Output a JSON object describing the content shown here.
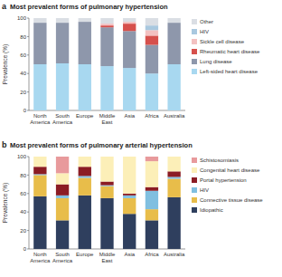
{
  "chart_data": [
    {
      "type": "bar",
      "stacked": true,
      "panel_label": "a",
      "title": "Most prevalent forms of pulmonary hypertension",
      "y_label": "Prevalence (%)",
      "categories": [
        "North America",
        "South America",
        "Europe",
        "Middle East",
        "Asia",
        "Africa",
        "Australia"
      ],
      "ylim": [
        0,
        100
      ],
      "yticks": [
        0,
        20,
        40,
        60,
        80,
        100
      ],
      "legend": "right",
      "series": [
        {
          "name": "Left-sided heart disease",
          "color": "#a8d8f0",
          "values": [
            50,
            51,
            50,
            48,
            46,
            40,
            50
          ]
        },
        {
          "name": "Lung disease",
          "color": "#8e97ab",
          "values": [
            45,
            44,
            46,
            42,
            40,
            31,
            45
          ]
        },
        {
          "name": "Rheumatic heart disease",
          "color": "#d6504c",
          "values": [
            0,
            0,
            0,
            2,
            8,
            10,
            0
          ]
        },
        {
          "name": "Sickle cell disease",
          "color": "#f3c1c1",
          "values": [
            0,
            0,
            0,
            2,
            2,
            6,
            0
          ]
        },
        {
          "name": "HIV",
          "color": "#a9c8df",
          "values": [
            0,
            0,
            0,
            0,
            0,
            5,
            0
          ]
        },
        {
          "name": "Other",
          "color": "#dadee4",
          "values": [
            5,
            5,
            4,
            6,
            4,
            8,
            5
          ]
        }
      ]
    },
    {
      "type": "bar",
      "stacked": true,
      "panel_label": "b",
      "title": "Most prevalent forms of pulmonary arterial hypertension",
      "y_label": "Prevalence (%)",
      "categories": [
        "North America",
        "South America",
        "Europe",
        "Middle East",
        "Asia",
        "Africa",
        "Australia"
      ],
      "ylim": [
        0,
        100
      ],
      "yticks": [
        0,
        20,
        40,
        60,
        80,
        100
      ],
      "legend": "right",
      "series": [
        {
          "name": "Idiopathic",
          "color": "#2f3f5e",
          "values": [
            57,
            31,
            58,
            55,
            38,
            31,
            56
          ]
        },
        {
          "name": "Connective tissue disease",
          "color": "#e8bd4a",
          "values": [
            23,
            24,
            19,
            13,
            17,
            12,
            20
          ]
        },
        {
          "name": "HIV",
          "color": "#80bfe0",
          "values": [
            1,
            3,
            2,
            1,
            3,
            20,
            2
          ]
        },
        {
          "name": "Portal hypertension",
          "color": "#8b1c24",
          "values": [
            8,
            12,
            10,
            4,
            2,
            4,
            6
          ]
        },
        {
          "name": "Congenital heart disease",
          "color": "#fcefb8",
          "values": [
            11,
            12,
            11,
            27,
            40,
            28,
            16
          ]
        },
        {
          "name": "Schistosomiasis",
          "color": "#e89a9c",
          "values": [
            0,
            18,
            0,
            0,
            0,
            5,
            0
          ]
        }
      ]
    }
  ]
}
